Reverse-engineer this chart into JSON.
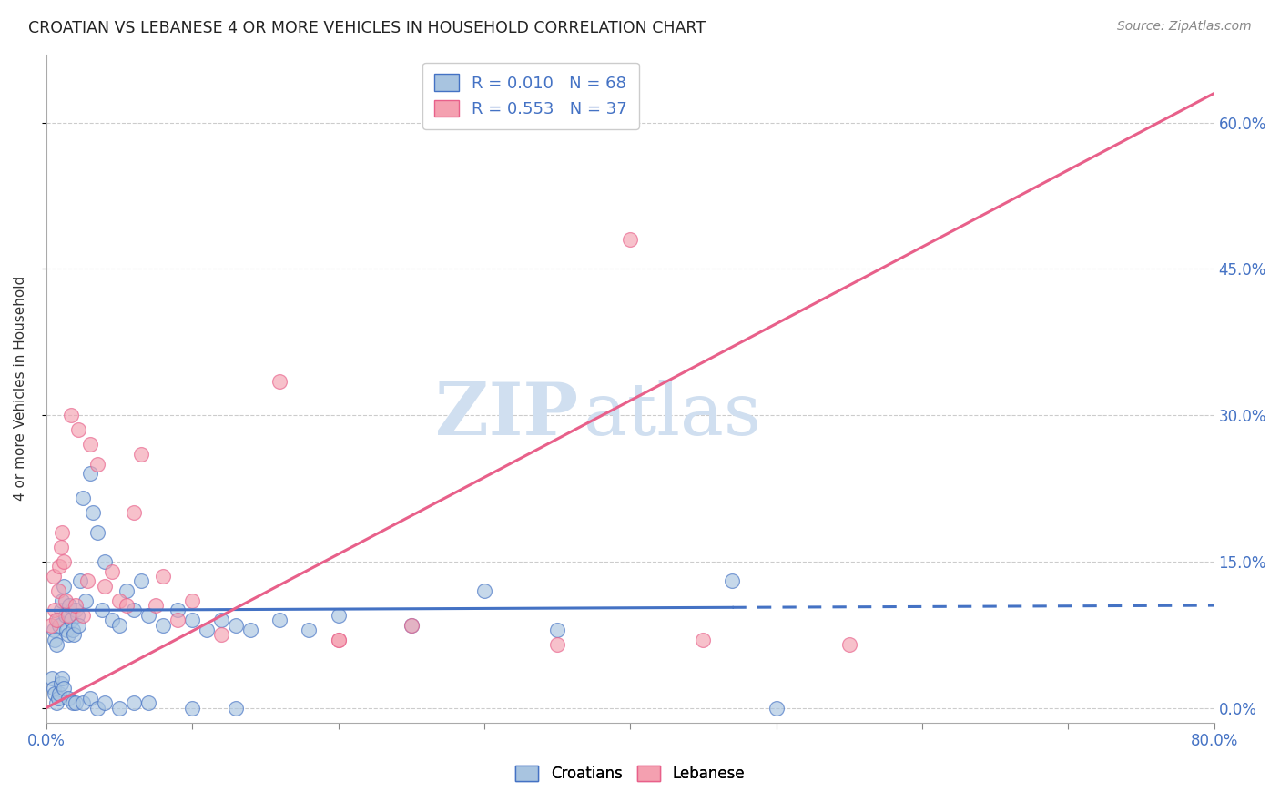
{
  "title": "CROATIAN VS LEBANESE 4 OR MORE VEHICLES IN HOUSEHOLD CORRELATION CHART",
  "source": "Source: ZipAtlas.com",
  "ylabel": "4 or more Vehicles in Household",
  "xlim": [
    0.0,
    80.0
  ],
  "ylim": [
    -1.5,
    67.0
  ],
  "ytick_positions": [
    0,
    15,
    30,
    45,
    60
  ],
  "ytick_labels_right": [
    "0.0%",
    "15.0%",
    "30.0%",
    "45.0%",
    "60.0%"
  ],
  "xtick_positions": [
    0,
    10,
    20,
    30,
    40,
    50,
    60,
    70,
    80
  ],
  "croatian_color": "#a8c4e0",
  "lebanese_color": "#f4a0b0",
  "line_croatian_color": "#4472c4",
  "line_lebanese_color": "#e8608a",
  "r_croatian": 0.01,
  "n_croatian": 68,
  "r_lebanese": 0.553,
  "n_lebanese": 37,
  "watermark_zip": "ZIP",
  "watermark_atlas": "atlas",
  "watermark_color": "#d0dff0",
  "croatian_line_x": [
    0,
    47,
    47,
    80
  ],
  "croatian_line_y": [
    10.0,
    10.0,
    10.0,
    10.3
  ],
  "croatian_line_solid_end": 1,
  "croatian_line_dash_start": 2,
  "lebanese_line_x": [
    0,
    80
  ],
  "lebanese_line_y": [
    0.0,
    63.0
  ],
  "croatian_scatter_x": [
    0.5,
    0.6,
    0.7,
    0.8,
    0.9,
    1.0,
    1.1,
    1.2,
    1.3,
    1.4,
    1.5,
    1.6,
    1.7,
    1.8,
    1.9,
    2.0,
    2.1,
    2.2,
    2.3,
    2.5,
    2.7,
    3.0,
    3.2,
    3.5,
    3.8,
    4.0,
    4.5,
    5.0,
    5.5,
    6.0,
    6.5,
    7.0,
    8.0,
    9.0,
    10.0,
    11.0,
    12.0,
    13.0,
    14.0,
    16.0,
    18.0,
    20.0,
    25.0,
    30.0,
    35.0,
    47.0,
    0.4,
    0.5,
    0.6,
    0.7,
    0.8,
    0.9,
    1.0,
    1.1,
    1.2,
    1.5,
    1.8,
    2.0,
    2.5,
    3.0,
    3.5,
    4.0,
    5.0,
    6.0,
    7.0,
    10.0,
    13.0,
    50.0
  ],
  "croatian_scatter_y": [
    8.0,
    7.0,
    6.5,
    9.0,
    8.5,
    10.0,
    11.0,
    12.5,
    9.5,
    8.0,
    7.5,
    10.5,
    9.0,
    8.0,
    7.5,
    10.0,
    9.5,
    8.5,
    13.0,
    21.5,
    11.0,
    24.0,
    20.0,
    18.0,
    10.0,
    15.0,
    9.0,
    8.5,
    12.0,
    10.0,
    13.0,
    9.5,
    8.5,
    10.0,
    9.0,
    8.0,
    9.0,
    8.5,
    8.0,
    9.0,
    8.0,
    9.5,
    8.5,
    12.0,
    8.0,
    13.0,
    3.0,
    2.0,
    1.5,
    0.5,
    1.0,
    1.5,
    2.5,
    3.0,
    2.0,
    1.0,
    0.5,
    0.5,
    0.5,
    1.0,
    0.0,
    0.5,
    0.0,
    0.5,
    0.5,
    0.0,
    0.0,
    0.0
  ],
  "lebanese_scatter_x": [
    0.3,
    0.5,
    0.6,
    0.7,
    0.8,
    0.9,
    1.0,
    1.1,
    1.2,
    1.3,
    1.5,
    1.7,
    2.0,
    2.2,
    2.5,
    2.8,
    3.0,
    3.5,
    4.0,
    4.5,
    5.0,
    5.5,
    6.0,
    6.5,
    7.5,
    8.0,
    9.0,
    10.0,
    12.0,
    16.0,
    20.0,
    35.0,
    40.0,
    20.0,
    25.0,
    45.0,
    55.0
  ],
  "lebanese_scatter_y": [
    8.5,
    13.5,
    10.0,
    9.0,
    12.0,
    14.5,
    16.5,
    18.0,
    15.0,
    11.0,
    9.5,
    30.0,
    10.5,
    28.5,
    9.5,
    13.0,
    27.0,
    25.0,
    12.5,
    14.0,
    11.0,
    10.5,
    20.0,
    26.0,
    10.5,
    13.5,
    9.0,
    11.0,
    7.5,
    33.5,
    7.0,
    6.5,
    48.0,
    7.0,
    8.5,
    7.0,
    6.5
  ]
}
